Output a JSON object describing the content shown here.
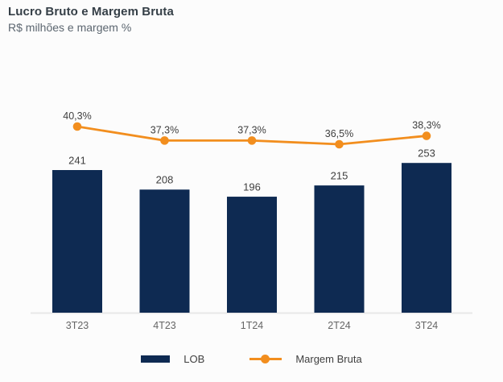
{
  "header": {
    "title": "Lucro Bruto e Margem Bruta",
    "subtitle": "R$ milhões e margem %"
  },
  "colors": {
    "bar": "#0E2A52",
    "line": "#F28E1E",
    "background": "#FCFCFC",
    "axis_line": "#E8E8E8",
    "value_label": "#3F3F3F",
    "axis_label": "#666666"
  },
  "legend": {
    "items": [
      {
        "label": "LOB",
        "marker": "bar-swatch",
        "color": "#0E2A52"
      },
      {
        "label": "Margem Bruta",
        "marker": "line-dot",
        "color": "#F28E1E"
      }
    ]
  },
  "chart_data": {
    "type": "combo",
    "title": "Lucro Bruto e Margem Bruta",
    "subtitle": "R$ milhões e margem %",
    "categories": [
      "3T23",
      "4T23",
      "1T24",
      "2T24",
      "3T24"
    ],
    "series": [
      {
        "name": "LOB",
        "type": "bar",
        "values": [
          241,
          208,
          196,
          215,
          253
        ],
        "labels": [
          "241",
          "208",
          "196",
          "215",
          "253"
        ],
        "color": "#0E2A52"
      },
      {
        "name": "Margem Bruta",
        "type": "line",
        "values": [
          40.3,
          37.3,
          37.3,
          36.5,
          38.3
        ],
        "labels": [
          "40,3%",
          "37,3%",
          "37,3%",
          "36,5%",
          "38,3%"
        ],
        "color": "#F28E1E"
      }
    ],
    "legend_position": "bottom",
    "grid": false,
    "y_axis_visible": false,
    "x_axis_line": true
  }
}
